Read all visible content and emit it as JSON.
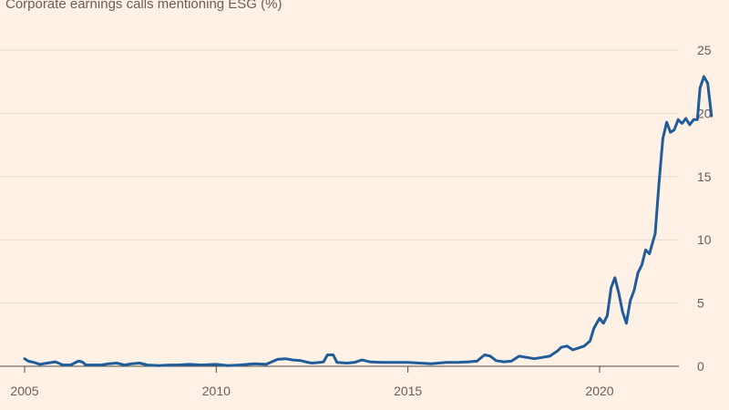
{
  "chart_data": {
    "type": "line",
    "title": "Corporate earnings calls mentioning ESG (%)",
    "xlabel": "",
    "ylabel": "",
    "xlim": [
      2005,
      2022.7
    ],
    "ylim": [
      0,
      25
    ],
    "x_ticks": [
      2005,
      2010,
      2015,
      2020
    ],
    "x_tick_labels": [
      "2005",
      "2010",
      "2015",
      "2020"
    ],
    "y_ticks": [
      0,
      5,
      10,
      15,
      20,
      25
    ],
    "y_tick_labels": [
      "0",
      "5",
      "10",
      "15",
      "20",
      "25"
    ],
    "y_axis_position": "right",
    "grid": "horizontal",
    "legend": "none",
    "colors": {
      "background": "#FFF1E5",
      "line": "#1F5C99",
      "grid": "#E6D9CE",
      "axis": "#66605C",
      "text": "#66605C"
    },
    "series": [
      {
        "points": [
          [
            2005.0,
            0.6
          ],
          [
            2005.1,
            0.4
          ],
          [
            2005.25,
            0.3
          ],
          [
            2005.4,
            0.15
          ],
          [
            2005.6,
            0.25
          ],
          [
            2005.8,
            0.35
          ],
          [
            2006.0,
            0.1
          ],
          [
            2006.2,
            0.1
          ],
          [
            2006.4,
            0.4
          ],
          [
            2006.5,
            0.35
          ],
          [
            2006.6,
            0.1
          ],
          [
            2007.0,
            0.1
          ],
          [
            2007.2,
            0.2
          ],
          [
            2007.4,
            0.25
          ],
          [
            2007.6,
            0.1
          ],
          [
            2007.8,
            0.2
          ],
          [
            2008.0,
            0.25
          ],
          [
            2008.2,
            0.1
          ],
          [
            2008.5,
            0.05
          ],
          [
            2008.8,
            0.1
          ],
          [
            2009.0,
            0.1
          ],
          [
            2009.3,
            0.15
          ],
          [
            2009.6,
            0.1
          ],
          [
            2010.0,
            0.15
          ],
          [
            2010.3,
            0.05
          ],
          [
            2010.6,
            0.1
          ],
          [
            2011.0,
            0.2
          ],
          [
            2011.3,
            0.15
          ],
          [
            2011.6,
            0.55
          ],
          [
            2011.8,
            0.6
          ],
          [
            2012.0,
            0.5
          ],
          [
            2012.2,
            0.45
          ],
          [
            2012.4,
            0.3
          ],
          [
            2012.5,
            0.25
          ],
          [
            2012.7,
            0.3
          ],
          [
            2012.8,
            0.35
          ],
          [
            2012.9,
            0.9
          ],
          [
            2013.05,
            0.9
          ],
          [
            2013.15,
            0.3
          ],
          [
            2013.4,
            0.25
          ],
          [
            2013.6,
            0.3
          ],
          [
            2013.8,
            0.5
          ],
          [
            2014.0,
            0.35
          ],
          [
            2014.3,
            0.3
          ],
          [
            2014.6,
            0.3
          ],
          [
            2015.0,
            0.3
          ],
          [
            2015.3,
            0.25
          ],
          [
            2015.6,
            0.2
          ],
          [
            2016.0,
            0.3
          ],
          [
            2016.3,
            0.3
          ],
          [
            2016.6,
            0.35
          ],
          [
            2016.8,
            0.4
          ],
          [
            2017.0,
            0.9
          ],
          [
            2017.15,
            0.8
          ],
          [
            2017.3,
            0.45
          ],
          [
            2017.5,
            0.35
          ],
          [
            2017.7,
            0.4
          ],
          [
            2017.9,
            0.8
          ],
          [
            2018.1,
            0.7
          ],
          [
            2018.3,
            0.6
          ],
          [
            2018.5,
            0.7
          ],
          [
            2018.7,
            0.8
          ],
          [
            2018.9,
            1.2
          ],
          [
            2019.0,
            1.5
          ],
          [
            2019.15,
            1.6
          ],
          [
            2019.3,
            1.3
          ],
          [
            2019.5,
            1.5
          ],
          [
            2019.6,
            1.6
          ],
          [
            2019.75,
            2.0
          ],
          [
            2019.85,
            3.0
          ],
          [
            2020.0,
            3.8
          ],
          [
            2020.1,
            3.4
          ],
          [
            2020.2,
            4.0
          ],
          [
            2020.3,
            6.2
          ],
          [
            2020.4,
            7.0
          ],
          [
            2020.5,
            5.8
          ],
          [
            2020.6,
            4.3
          ],
          [
            2020.7,
            3.4
          ],
          [
            2020.8,
            5.2
          ],
          [
            2020.9,
            6.0
          ],
          [
            2021.0,
            7.4
          ],
          [
            2021.1,
            8.0
          ],
          [
            2021.2,
            9.2
          ],
          [
            2021.3,
            8.9
          ],
          [
            2021.45,
            10.5
          ],
          [
            2021.55,
            14.5
          ],
          [
            2021.65,
            18.0
          ],
          [
            2021.75,
            19.3
          ],
          [
            2021.85,
            18.5
          ],
          [
            2021.95,
            18.7
          ],
          [
            2022.05,
            19.5
          ],
          [
            2022.15,
            19.2
          ],
          [
            2022.25,
            19.6
          ],
          [
            2022.35,
            19.1
          ],
          [
            2022.45,
            19.5
          ],
          [
            2022.55,
            19.5
          ],
          [
            2022.62,
            22.0
          ],
          [
            2022.72,
            22.9
          ],
          [
            2022.82,
            22.4
          ],
          [
            2022.92,
            19.8
          ]
        ]
      }
    ]
  }
}
